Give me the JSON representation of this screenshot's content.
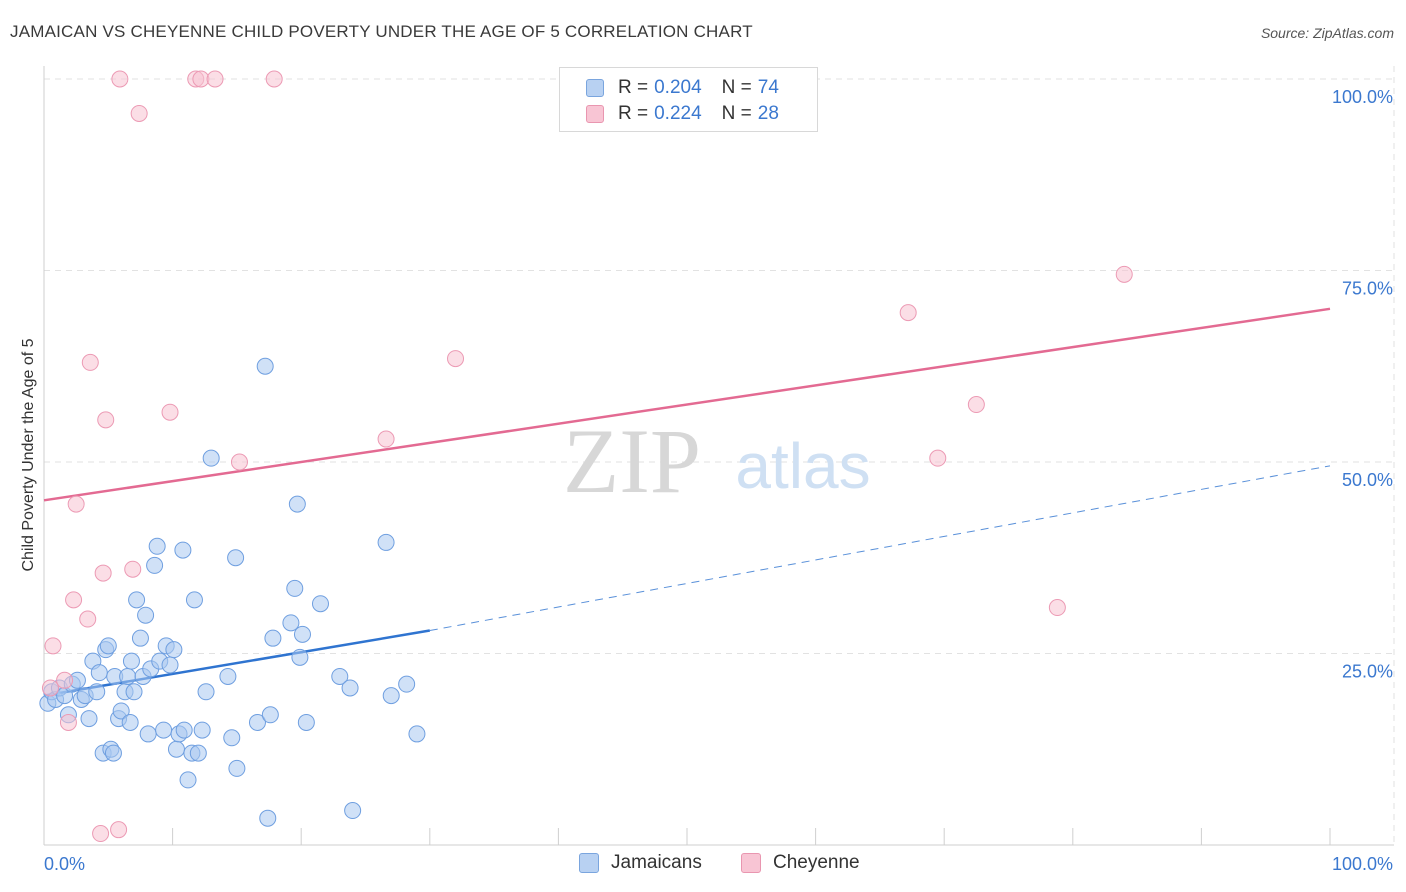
{
  "header": {
    "title": "JAMAICAN VS CHEYENNE CHILD POVERTY UNDER THE AGE OF 5 CORRELATION CHART",
    "source": "Source: ZipAtlas.com"
  },
  "watermark": {
    "zip": "ZIP",
    "atlas": "atlas"
  },
  "legend": {
    "rows": [
      {
        "r_label": "R =",
        "r_value": "0.204",
        "n_label": "N =",
        "n_value": "74",
        "color": "#b8d1f2"
      },
      {
        "r_label": "R =",
        "r_value": "0.224",
        "n_label": "N =",
        "n_value": "28",
        "color": "#f8c5d4"
      }
    ],
    "bottom": [
      {
        "label": "Jamaicans",
        "color": "#b8d1f2"
      },
      {
        "label": "Cheyenne",
        "color": "#f8c5d4"
      }
    ]
  },
  "chart_data": {
    "type": "scatter",
    "title": "JAMAICAN VS CHEYENNE CHILD POVERTY UNDER THE AGE OF 5 CORRELATION CHART",
    "xlabel": "",
    "ylabel": "Child Poverty Under the Age of 5",
    "xlim": [
      0,
      100
    ],
    "ylim": [
      0,
      100
    ],
    "x_tick_labels": [
      "0.0%",
      "100.0%"
    ],
    "y_tick_values": [
      25,
      50,
      75,
      100
    ],
    "y_tick_labels": [
      "25.0%",
      "50.0%",
      "75.0%",
      "100.0%"
    ],
    "grid": true,
    "series": [
      {
        "name": "Jamaicans",
        "color": "#a9c8f0",
        "stroke": "#6f9fe0",
        "line_color": "#2f74d0",
        "trend": {
          "start": [
            0,
            19.5
          ],
          "end": [
            30,
            28
          ],
          "dashed_end": [
            100,
            49.5
          ]
        },
        "points": [
          [
            0.3,
            18.5
          ],
          [
            0.6,
            20
          ],
          [
            0.9,
            19
          ],
          [
            1.2,
            20.5
          ],
          [
            1.6,
            19.5
          ],
          [
            1.9,
            17
          ],
          [
            2.2,
            21
          ],
          [
            2.6,
            21.5
          ],
          [
            2.9,
            19
          ],
          [
            3.2,
            19.5
          ],
          [
            3.5,
            16.5
          ],
          [
            3.8,
            24
          ],
          [
            4.1,
            20
          ],
          [
            4.3,
            22.5
          ],
          [
            4.6,
            12
          ],
          [
            4.8,
            25.5
          ],
          [
            5.0,
            26
          ],
          [
            5.2,
            12.5
          ],
          [
            5.5,
            22
          ],
          [
            5.8,
            16.5
          ],
          [
            6.0,
            17.5
          ],
          [
            6.3,
            20
          ],
          [
            6.5,
            22
          ],
          [
            6.8,
            24
          ],
          [
            7.0,
            20
          ],
          [
            7.2,
            32
          ],
          [
            7.5,
            27
          ],
          [
            7.7,
            22
          ],
          [
            7.9,
            30
          ],
          [
            8.1,
            14.5
          ],
          [
            8.3,
            23
          ],
          [
            8.6,
            36.5
          ],
          [
            8.8,
            39
          ],
          [
            9.0,
            24
          ],
          [
            9.3,
            15
          ],
          [
            9.5,
            26
          ],
          [
            9.8,
            23.5
          ],
          [
            10.1,
            25.5
          ],
          [
            10.3,
            12.5
          ],
          [
            10.5,
            14.5
          ],
          [
            10.8,
            38.5
          ],
          [
            10.9,
            15
          ],
          [
            11.2,
            8.5
          ],
          [
            11.5,
            12
          ],
          [
            11.7,
            32
          ],
          [
            12.0,
            12
          ],
          [
            12.3,
            15
          ],
          [
            12.6,
            20
          ],
          [
            13.0,
            50.5
          ],
          [
            14.3,
            22
          ],
          [
            14.6,
            14
          ],
          [
            14.9,
            37.5
          ],
          [
            15.0,
            10
          ],
          [
            16.6,
            16
          ],
          [
            17.2,
            62.5
          ],
          [
            17.4,
            3.5
          ],
          [
            17.6,
            17
          ],
          [
            17.8,
            27
          ],
          [
            19.2,
            29
          ],
          [
            19.5,
            33.5
          ],
          [
            19.7,
            44.5
          ],
          [
            19.9,
            24.5
          ],
          [
            20.1,
            27.5
          ],
          [
            20.4,
            16
          ],
          [
            21.5,
            31.5
          ],
          [
            23.0,
            22
          ],
          [
            23.8,
            20.5
          ],
          [
            24.0,
            4.5
          ],
          [
            26.6,
            39.5
          ],
          [
            27.0,
            19.5
          ],
          [
            28.2,
            21
          ],
          [
            29.0,
            14.5
          ],
          [
            5.4,
            12
          ],
          [
            6.7,
            16
          ]
        ]
      },
      {
        "name": "Cheyenne",
        "color": "#f7c3d2",
        "stroke": "#ec9ab4",
        "line_color": "#e36a92",
        "trend": {
          "start": [
            0,
            45
          ],
          "end": [
            100,
            70
          ]
        },
        "points": [
          [
            0.7,
            26
          ],
          [
            1.6,
            21.5
          ],
          [
            1.9,
            16
          ],
          [
            2.3,
            32
          ],
          [
            2.5,
            44.5
          ],
          [
            3.4,
            29.5
          ],
          [
            3.6,
            63
          ],
          [
            4.4,
            1.5
          ],
          [
            4.6,
            35.5
          ],
          [
            4.8,
            55.5
          ],
          [
            5.8,
            2
          ],
          [
            5.9,
            100
          ],
          [
            6.9,
            36
          ],
          [
            7.4,
            95.5
          ],
          [
            9.8,
            56.5
          ],
          [
            11.8,
            100
          ],
          [
            12.2,
            100
          ],
          [
            13.3,
            100
          ],
          [
            15.2,
            50
          ],
          [
            17.9,
            100
          ],
          [
            26.6,
            53
          ],
          [
            32.0,
            63.5
          ],
          [
            67.2,
            69.5
          ],
          [
            69.5,
            50.5
          ],
          [
            72.5,
            57.5
          ],
          [
            78.8,
            31
          ],
          [
            84.0,
            74.5
          ],
          [
            0.5,
            20.5
          ]
        ]
      }
    ]
  }
}
